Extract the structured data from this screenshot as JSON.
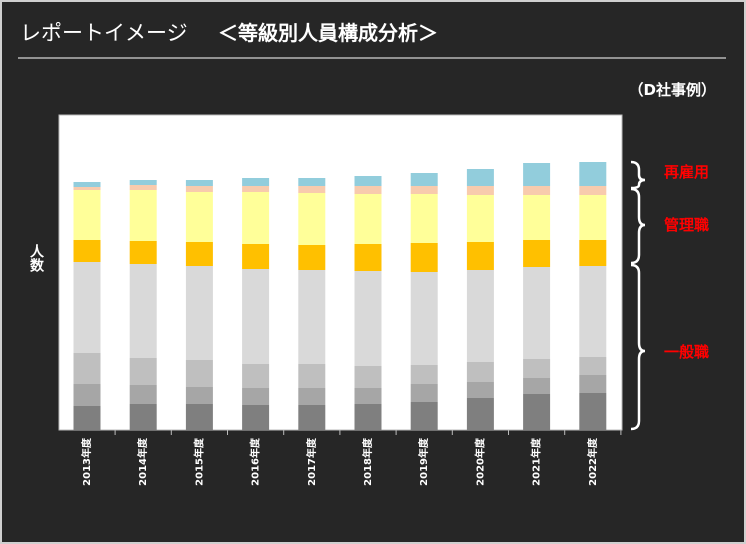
{
  "chart_data": {
    "type": "stacked-bar",
    "title": "レポートイメージ",
    "subtitle": "＜等級別人員構成分析＞",
    "note": "（D社事例）",
    "y_label": "人数",
    "annotations": [
      "再雇用",
      "管理職",
      "一般職"
    ],
    "categories": [
      "2013年度",
      "2014年度",
      "2015年度",
      "2016年度",
      "2017年度",
      "2018年度",
      "2019年度",
      "2020年度",
      "2021年度",
      "2022年度"
    ],
    "ylim": [
      0,
      315
    ],
    "series": [
      {
        "color": "#7f7f7f",
        "values": [
          24,
          26,
          26,
          25,
          25,
          26,
          28,
          32,
          36,
          37
        ]
      },
      {
        "color": "#a6a6a6",
        "values": [
          22,
          19,
          17,
          17,
          17,
          16,
          18,
          16,
          16,
          18
        ]
      },
      {
        "color": "#bfbfbf",
        "values": [
          31,
          27,
          27,
          24,
          24,
          22,
          19,
          20,
          19,
          18
        ]
      },
      {
        "color": "#d9d9d9",
        "values": [
          91,
          94,
          94,
          95,
          94,
          95,
          93,
          92,
          92,
          91
        ]
      },
      {
        "color": "#ffc000",
        "values": [
          22,
          23,
          24,
          25,
          25,
          27,
          29,
          28,
          27,
          26
        ]
      },
      {
        "color": "#ffff99",
        "values": [
          50,
          51,
          50,
          52,
          52,
          50,
          49,
          47,
          45,
          45
        ]
      },
      {
        "color": "#f8cbad",
        "values": [
          3,
          5,
          6,
          6,
          7,
          8,
          8,
          9,
          9,
          9
        ]
      },
      {
        "color": "#92cddc",
        "values": [
          5,
          5,
          6,
          8,
          8,
          10,
          13,
          17,
          23,
          24
        ]
      }
    ]
  }
}
